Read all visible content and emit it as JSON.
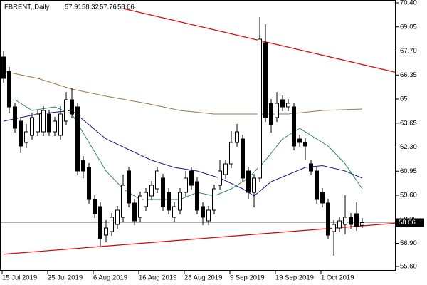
{
  "chart_data": {
    "type": "candlestick",
    "symbol": "FBRENT,,Daily",
    "categories": [
      "15 Jul 2019",
      null,
      null,
      null,
      null,
      null,
      null,
      null,
      "25 Jul 2019",
      null,
      null,
      null,
      null,
      null,
      null,
      null,
      "6 Aug 2019",
      null,
      null,
      null,
      null,
      null,
      null,
      null,
      "16 Aug 2019",
      null,
      null,
      null,
      null,
      null,
      null,
      null,
      "28 Aug 2019",
      null,
      null,
      null,
      null,
      null,
      null,
      null,
      "9 Sep 2019",
      null,
      null,
      null,
      null,
      null,
      null,
      null,
      "19 Sep 2019",
      null,
      null,
      null,
      null,
      null,
      null,
      null,
      "1 Oct 2019",
      null,
      null,
      null,
      null,
      null,
      null,
      null
    ],
    "ohlc": {
      "open": [
        67.36,
        66.56,
        64.56,
        63.76,
        62.56,
        62.96,
        63.16,
        63.16,
        64.16,
        63.16,
        62.96,
        63.76,
        64.96,
        64.56,
        61.56,
        61.16,
        59.36,
        58.96,
        57.36,
        57.56,
        57.96,
        58.36,
        60.96,
        59.16,
        58.36,
        58.96,
        59.56,
        59.96,
        60.56,
        59.76,
        58.36,
        58.76,
        59.76,
        60.96,
        60.36,
        58.96,
        58.16,
        58.76,
        60.16,
        60.76,
        61.36,
        62.56,
        62.76,
        60.96,
        59.76,
        60.56,
        68.16,
        64.76,
        63.96,
        64.96,
        64.56,
        64.56,
        62.76,
        62.56,
        61.36,
        60.96,
        59.76,
        59.16,
        57.56,
        57.76,
        57.96,
        58.36,
        58.56,
        57.91
      ],
      "high": [
        67.68,
        66.8,
        64.8,
        64.0,
        63.6,
        64.2,
        64.4,
        64.6,
        64.4,
        64.0,
        64.6,
        65.4,
        65.6,
        64.8,
        61.8,
        61.4,
        59.6,
        59.2,
        58.2,
        58.6,
        59.0,
        60.76,
        61.2,
        59.4,
        59.8,
        60.0,
        60.4,
        61.2,
        60.8,
        60.0,
        59.2,
        60.0,
        60.96,
        61.2,
        60.6,
        59.2,
        59.0,
        60.2,
        61.6,
        61.6,
        63.2,
        63.6,
        63.0,
        61.2,
        60.8,
        69.6,
        69.2,
        65.0,
        65.4,
        65.2,
        65.0,
        64.8,
        63.0,
        62.8,
        61.6,
        61.2,
        60.0,
        59.4,
        58.2,
        58.4,
        59.6,
        58.6,
        59.2,
        58.32
      ],
      "low": [
        65.92,
        64.2,
        63.12,
        61.96,
        62.24,
        62.72,
        62.92,
        62.92,
        62.92,
        62.92,
        62.72,
        63.52,
        63.92,
        60.72,
        60.56,
        59.12,
        58.32,
        56.76,
        56.96,
        57.32,
        57.72,
        58.12,
        58.92,
        57.92,
        58.12,
        58.72,
        59.32,
        59.72,
        58.72,
        58.52,
        58.12,
        58.52,
        59.52,
        59.92,
        58.52,
        57.92,
        57.92,
        58.52,
        59.92,
        60.52,
        61.12,
        62.32,
        60.32,
        59.36,
        58.92,
        60.32,
        63.72,
        63.12,
        63.72,
        64.32,
        64.32,
        62.12,
        62.32,
        61.6,
        60.72,
        59.12,
        58.92,
        57.12,
        56.2,
        57.52,
        57.4,
        57.72,
        57.6,
        57.76
      ],
      "close": [
        66.16,
        64.56,
        63.36,
        62.36,
        63.16,
        63.96,
        64.16,
        64.36,
        63.16,
        63.76,
        64.16,
        64.96,
        64.16,
        60.96,
        60.96,
        59.36,
        58.56,
        57.16,
        57.76,
        58.36,
        58.76,
        60.16,
        59.16,
        58.16,
        59.56,
        59.76,
        60.16,
        60.96,
        58.96,
        58.76,
        58.96,
        59.76,
        60.56,
        60.16,
        58.76,
        58.36,
        58.76,
        59.96,
        60.96,
        61.36,
        62.56,
        63.16,
        60.56,
        59.76,
        60.56,
        68.36,
        63.96,
        63.56,
        64.76,
        64.56,
        64.76,
        62.36,
        62.56,
        62.36,
        60.96,
        59.36,
        59.16,
        57.36,
        57.96,
        58.16,
        58.36,
        57.96,
        57.84,
        58.06
      ]
    },
    "up_color": "#ffffff",
    "down_color": "#000000",
    "series": [
      {
        "color": "#a0784a",
        "x": [
          0,
          6,
          12,
          18,
          25,
          31,
          37,
          43,
          50,
          56,
          63
        ],
        "values": [
          66.56,
          66.16,
          65.56,
          65.16,
          64.76,
          64.36,
          64.16,
          64.16,
          64.16,
          64.36,
          64.44
        ]
      },
      {
        "color": "#1a1a8c",
        "x": [
          0,
          6,
          12,
          15,
          18,
          22,
          26,
          30,
          34,
          38,
          42,
          44,
          47,
          50,
          53,
          56,
          60,
          63
        ],
        "values": [
          63.76,
          64.16,
          64.36,
          63.56,
          62.76,
          62.16,
          61.56,
          61.16,
          60.96,
          60.56,
          59.96,
          59.56,
          60.36,
          60.76,
          61.16,
          61.26,
          60.96,
          60.56
        ]
      },
      {
        "color": "#2e8b57",
        "x": [
          2,
          5,
          9,
          12,
          15,
          18,
          21,
          24,
          28,
          31,
          34,
          37,
          40,
          43,
          46,
          49,
          52,
          54,
          57,
          60,
          63
        ],
        "values": [
          64.96,
          64.36,
          64.56,
          64.16,
          62.56,
          60.96,
          59.96,
          59.36,
          59.36,
          59.36,
          59.76,
          59.56,
          59.96,
          60.56,
          61.56,
          62.76,
          63.36,
          62.96,
          62.36,
          61.36,
          59.96
        ]
      }
    ],
    "trendlines": [
      {
        "color": "#e00000",
        "x": [
          0,
          63
        ],
        "values": [
          56.29,
          57.88
        ]
      },
      {
        "color": "#e00000",
        "x": [
          21,
          63
        ],
        "values": [
          70.08,
          66.94
        ]
      }
    ],
    "ylim": [
      55.36,
      70.56
    ],
    "yticks": [
      {
        "value": 70.4,
        "label": "70.40"
      },
      69.05,
      {
        "value": 67.7,
        "label": "67.70"
      },
      66.35,
      65.0,
      63.65,
      {
        "value": 62.3,
        "label": "62.30"
      },
      60.95,
      {
        "value": 59.6,
        "label": "59.60"
      },
      58.25,
      {
        "value": 56.9,
        "label": "56.90"
      },
      {
        "value": 55.6,
        "label": "55.60"
      }
    ]
  }
}
